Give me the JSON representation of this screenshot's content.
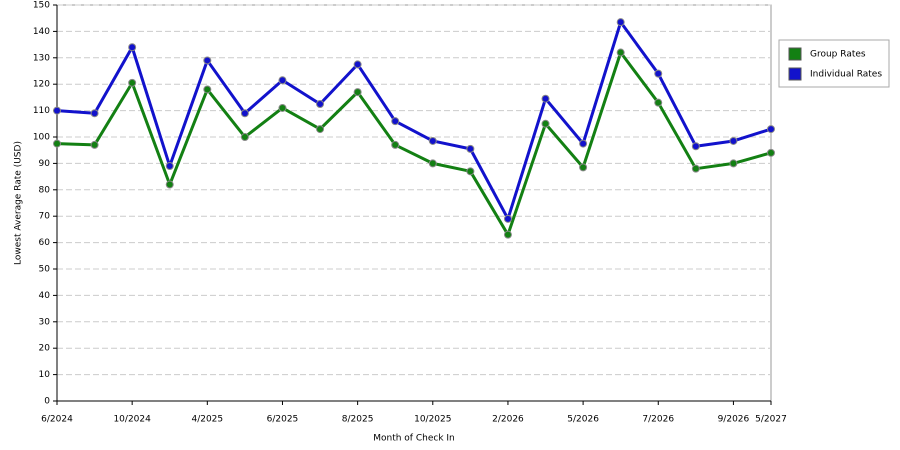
{
  "chart_data": {
    "type": "line",
    "x_label": "Month of Check In",
    "y_label": "Lowest Average Rate (USD)",
    "categories": [
      "6/2024",
      null,
      "10/2024",
      null,
      "4/2025",
      null,
      "6/2025",
      null,
      "8/2025",
      null,
      "10/2025",
      null,
      "2/2026",
      null,
      "5/2026",
      null,
      "7/2026",
      null,
      "9/2026",
      "5/2027"
    ],
    "series": [
      {
        "name": "Group Rates",
        "color": "#138013",
        "values": [
          97.5,
          97,
          120.5,
          82,
          118,
          100,
          111,
          103,
          117,
          97,
          90,
          87,
          63,
          105,
          88.5,
          132,
          113,
          88,
          90,
          94
        ]
      },
      {
        "name": "Individual Rates",
        "color": "#1212cc",
        "values": [
          110,
          109,
          134,
          89,
          129,
          109,
          121.5,
          112.5,
          127.5,
          106,
          98.5,
          95.5,
          69,
          114.5,
          97.5,
          143.5,
          124,
          96.5,
          98.5,
          103
        ]
      }
    ],
    "ylim": [
      0,
      150
    ],
    "yticks": [
      0,
      10,
      20,
      30,
      40,
      50,
      60,
      70,
      80,
      90,
      100,
      110,
      120,
      130,
      140,
      150
    ],
    "grid": true,
    "legend": "right"
  }
}
